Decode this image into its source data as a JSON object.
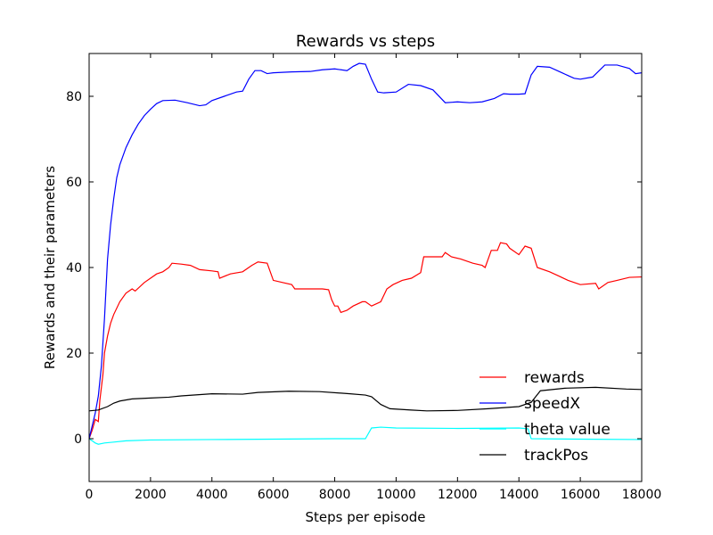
{
  "chart_data": {
    "type": "line",
    "title": "Rewards vs steps",
    "xlabel": "Steps per episode",
    "ylabel": "Rewards and their parameters",
    "xlim": [
      0,
      18000
    ],
    "ylim": [
      -10,
      90
    ],
    "x_ticks": [
      0,
      2000,
      4000,
      6000,
      8000,
      10000,
      12000,
      14000,
      16000,
      18000
    ],
    "y_ticks": [
      0,
      20,
      40,
      60,
      80
    ],
    "grid": false,
    "legend_position": "lower-right",
    "series": [
      {
        "name": "rewards",
        "color": "#ff0000",
        "points": [
          [
            0,
            0
          ],
          [
            100,
            2
          ],
          [
            200,
            4.5
          ],
          [
            300,
            4
          ],
          [
            350,
            9
          ],
          [
            400,
            12
          ],
          [
            450,
            15
          ],
          [
            500,
            20
          ],
          [
            600,
            24
          ],
          [
            700,
            27
          ],
          [
            800,
            29
          ],
          [
            1000,
            32
          ],
          [
            1200,
            34
          ],
          [
            1400,
            35
          ],
          [
            1500,
            34.5
          ],
          [
            1800,
            36.5
          ],
          [
            2000,
            37.5
          ],
          [
            2200,
            38.5
          ],
          [
            2400,
            39
          ],
          [
            2600,
            40
          ],
          [
            2700,
            41
          ],
          [
            3000,
            40.8
          ],
          [
            3300,
            40.5
          ],
          [
            3600,
            39.5
          ],
          [
            4000,
            39.2
          ],
          [
            4200,
            39
          ],
          [
            4250,
            37.5
          ],
          [
            4600,
            38.5
          ],
          [
            5000,
            39
          ],
          [
            5300,
            40.5
          ],
          [
            5500,
            41.3
          ],
          [
            5800,
            41
          ],
          [
            6000,
            37
          ],
          [
            6300,
            36.5
          ],
          [
            6600,
            36
          ],
          [
            6700,
            35
          ],
          [
            7000,
            35
          ],
          [
            7300,
            35
          ],
          [
            7600,
            35
          ],
          [
            7800,
            34.8
          ],
          [
            7900,
            32.5
          ],
          [
            8000,
            31
          ],
          [
            8100,
            31
          ],
          [
            8200,
            29.5
          ],
          [
            8400,
            30
          ],
          [
            8600,
            31
          ],
          [
            8900,
            32
          ],
          [
            9000,
            32
          ],
          [
            9200,
            31
          ],
          [
            9500,
            32
          ],
          [
            9700,
            35
          ],
          [
            9900,
            36
          ],
          [
            10200,
            37
          ],
          [
            10500,
            37.5
          ],
          [
            10800,
            38.8
          ],
          [
            10900,
            42.5
          ],
          [
            11200,
            42.5
          ],
          [
            11500,
            42.5
          ],
          [
            11600,
            43.5
          ],
          [
            11800,
            42.5
          ],
          [
            12100,
            42
          ],
          [
            12500,
            41
          ],
          [
            12800,
            40.5
          ],
          [
            12900,
            40
          ],
          [
            13000,
            42
          ],
          [
            13100,
            44
          ],
          [
            13300,
            44
          ],
          [
            13400,
            45.8
          ],
          [
            13600,
            45.5
          ],
          [
            13700,
            44.5
          ],
          [
            14000,
            43
          ],
          [
            14200,
            45
          ],
          [
            14400,
            44.5
          ],
          [
            14600,
            40
          ],
          [
            15000,
            39
          ],
          [
            15300,
            38
          ],
          [
            15600,
            37
          ],
          [
            16000,
            36
          ],
          [
            16500,
            36.3
          ],
          [
            16600,
            35
          ],
          [
            16900,
            36.5
          ],
          [
            17200,
            37
          ],
          [
            17600,
            37.7
          ],
          [
            18000,
            37.8
          ]
        ]
      },
      {
        "name": "speedX",
        "color": "#0000ff",
        "points": [
          [
            0,
            0
          ],
          [
            100,
            3
          ],
          [
            200,
            6
          ],
          [
            300,
            10
          ],
          [
            400,
            17
          ],
          [
            500,
            28
          ],
          [
            600,
            42
          ],
          [
            700,
            50
          ],
          [
            800,
            56
          ],
          [
            900,
            61
          ],
          [
            1000,
            64
          ],
          [
            1200,
            68
          ],
          [
            1400,
            71
          ],
          [
            1600,
            73.5
          ],
          [
            1800,
            75.5
          ],
          [
            2000,
            77
          ],
          [
            2200,
            78.3
          ],
          [
            2400,
            79
          ],
          [
            2800,
            79.1
          ],
          [
            3200,
            78.5
          ],
          [
            3600,
            77.8
          ],
          [
            3800,
            78
          ],
          [
            4000,
            79
          ],
          [
            4400,
            80
          ],
          [
            4800,
            81
          ],
          [
            5000,
            81.2
          ],
          [
            5200,
            84
          ],
          [
            5400,
            86
          ],
          [
            5600,
            86
          ],
          [
            5800,
            85.3
          ],
          [
            6000,
            85.5
          ],
          [
            6600,
            85.7
          ],
          [
            7200,
            85.8
          ],
          [
            7600,
            86.2
          ],
          [
            8000,
            86.4
          ],
          [
            8400,
            86
          ],
          [
            8600,
            87
          ],
          [
            8800,
            87.7
          ],
          [
            9000,
            87.5
          ],
          [
            9200,
            84
          ],
          [
            9400,
            81
          ],
          [
            9600,
            80.8
          ],
          [
            10000,
            81
          ],
          [
            10400,
            82.8
          ],
          [
            10800,
            82.5
          ],
          [
            11200,
            81.5
          ],
          [
            11600,
            78.5
          ],
          [
            12000,
            78.7
          ],
          [
            12400,
            78.5
          ],
          [
            12800,
            78.7
          ],
          [
            13200,
            79.5
          ],
          [
            13500,
            80.6
          ],
          [
            13700,
            80.5
          ],
          [
            14000,
            80.5
          ],
          [
            14200,
            80.6
          ],
          [
            14400,
            85
          ],
          [
            14600,
            87
          ],
          [
            15000,
            86.8
          ],
          [
            15400,
            85.5
          ],
          [
            15800,
            84.2
          ],
          [
            16000,
            84
          ],
          [
            16400,
            84.5
          ],
          [
            16800,
            87.3
          ],
          [
            17200,
            87.3
          ],
          [
            17600,
            86.5
          ],
          [
            17800,
            85.3
          ],
          [
            18000,
            85.5
          ]
        ]
      },
      {
        "name": "theta value",
        "color": "#00ffff",
        "points": [
          [
            0,
            0
          ],
          [
            100,
            -0.5
          ],
          [
            200,
            -1
          ],
          [
            300,
            -1.3
          ],
          [
            500,
            -1
          ],
          [
            800,
            -0.8
          ],
          [
            1200,
            -0.5
          ],
          [
            2000,
            -0.3
          ],
          [
            4000,
            -0.2
          ],
          [
            6000,
            -0.1
          ],
          [
            8000,
            0
          ],
          [
            9000,
            0
          ],
          [
            9200,
            2.5
          ],
          [
            9500,
            2.7
          ],
          [
            10000,
            2.5
          ],
          [
            12000,
            2.4
          ],
          [
            14000,
            2.5
          ],
          [
            14300,
            2.3
          ],
          [
            14400,
            0
          ],
          [
            16000,
            -0.1
          ],
          [
            18000,
            -0.2
          ]
        ]
      },
      {
        "name": "trackPos",
        "color": "#000000",
        "points": [
          [
            0,
            6.5
          ],
          [
            300,
            6.7
          ],
          [
            600,
            7.5
          ],
          [
            800,
            8.3
          ],
          [
            1000,
            8.8
          ],
          [
            1400,
            9.3
          ],
          [
            2000,
            9.5
          ],
          [
            2600,
            9.7
          ],
          [
            3000,
            10
          ],
          [
            4000,
            10.5
          ],
          [
            5000,
            10.4
          ],
          [
            5500,
            10.8
          ],
          [
            6500,
            11.1
          ],
          [
            7500,
            11
          ],
          [
            8500,
            10.5
          ],
          [
            9000,
            10.2
          ],
          [
            9200,
            9.8
          ],
          [
            9500,
            8
          ],
          [
            9800,
            7
          ],
          [
            10500,
            6.7
          ],
          [
            11000,
            6.5
          ],
          [
            12000,
            6.6
          ],
          [
            13000,
            7
          ],
          [
            14000,
            7.5
          ],
          [
            14400,
            8.5
          ],
          [
            14700,
            11.2
          ],
          [
            15500,
            11.8
          ],
          [
            16500,
            12
          ],
          [
            17500,
            11.6
          ],
          [
            18000,
            11.5
          ]
        ]
      }
    ]
  }
}
